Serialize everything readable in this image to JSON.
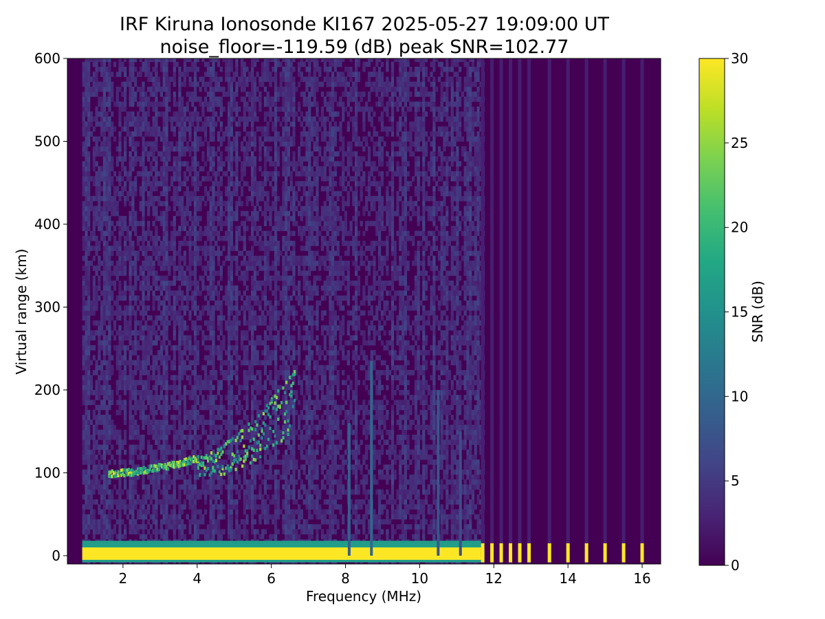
{
  "chart_data": {
    "type": "heatmap",
    "title": "IRF Kiruna Ionosonde KI167 2025-05-27 19:09:00  UT",
    "subtitle": "noise_floor=-119.59 (dB) peak SNR=102.77",
    "xlabel": "Frequency (MHz)",
    "ylabel": "Virtual range (km)",
    "xlim": [
      0.5,
      16.5
    ],
    "ylim": [
      -10,
      600
    ],
    "x_ticks": [
      2,
      4,
      6,
      8,
      10,
      12,
      14,
      16
    ],
    "y_ticks": [
      0,
      100,
      200,
      300,
      400,
      500,
      600
    ],
    "grid": false,
    "data_x_range": [
      0.9,
      16.4
    ],
    "colorbar": {
      "label": "SNR (dB)",
      "min": 0,
      "max": 30,
      "ticks": [
        0,
        5,
        10,
        15,
        20,
        25,
        30
      ],
      "colormap": "viridis"
    },
    "features": [
      {
        "label": "ground echo band",
        "x_range": [
          0.9,
          11.7
        ],
        "range_km": [
          -8,
          18
        ],
        "snr_db": 30
      },
      {
        "label": "E-layer trace",
        "x_range": [
          1.6,
          4.0
        ],
        "range_km": [
          97,
          115
        ],
        "snr_db": 26
      },
      {
        "label": "F-layer trace",
        "x_range": [
          4.0,
          6.6
        ],
        "range_km": [
          105,
          185
        ],
        "snr_db": 24
      },
      {
        "label": "interference line",
        "x": 8.1,
        "range_km": [
          0,
          160
        ],
        "snr_db": 9
      },
      {
        "label": "interference line",
        "x": 8.7,
        "range_km": [
          0,
          235
        ],
        "snr_db": 10
      },
      {
        "label": "interference line",
        "x": 10.5,
        "range_km": [
          0,
          200
        ],
        "snr_db": 8
      },
      {
        "label": "interference line",
        "x": 11.1,
        "range_km": [
          0,
          150
        ],
        "snr_db": 7
      }
    ],
    "sparse_frequencies": [
      11.7,
      11.95,
      12.2,
      12.45,
      12.7,
      12.95,
      13.5,
      14.0,
      14.5,
      15.0,
      15.5,
      16.0
    ]
  }
}
